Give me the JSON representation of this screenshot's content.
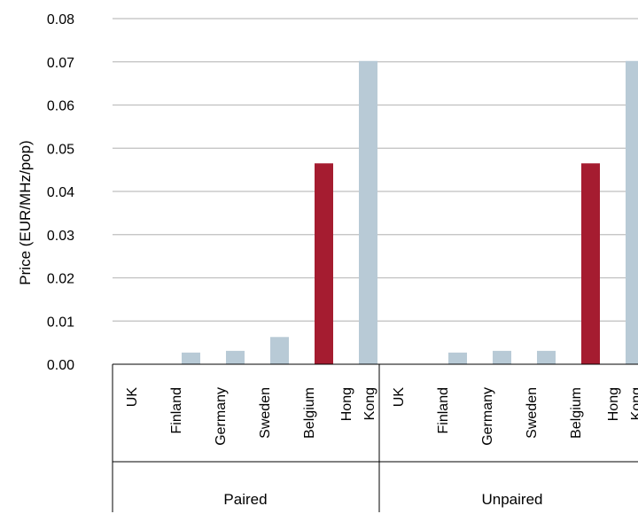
{
  "chart_data": {
    "type": "bar",
    "title": "",
    "ylabel": "Price (EUR/MHz/pop)",
    "xlabel": "",
    "ylim": [
      0,
      0.08
    ],
    "yticks": [
      "0.00",
      "0.01",
      "0.02",
      "0.03",
      "0.04",
      "0.05",
      "0.06",
      "0.07",
      "0.08"
    ],
    "grid": true,
    "legend": "none",
    "groups": [
      {
        "name": "Paired",
        "bars": [
          {
            "category": "UK",
            "label_lines": [
              "UK"
            ],
            "value": 0.0,
            "highlight": false
          },
          {
            "category": "Finland",
            "label_lines": [
              "Finland"
            ],
            "value": 0.0027,
            "highlight": false
          },
          {
            "category": "Germany",
            "label_lines": [
              "Germany"
            ],
            "value": 0.0031,
            "highlight": false
          },
          {
            "category": "Sweden",
            "label_lines": [
              "Sweden"
            ],
            "value": 0.0063,
            "highlight": false
          },
          {
            "category": "Belgium",
            "label_lines": [
              "Belgium"
            ],
            "value": 0.0465,
            "highlight": true
          },
          {
            "category": "Hong Kong",
            "label_lines": [
              "Hong",
              "Kong"
            ],
            "value": 0.0702,
            "highlight": false
          }
        ]
      },
      {
        "name": "Unpaired",
        "bars": [
          {
            "category": "UK",
            "label_lines": [
              "UK"
            ],
            "value": 0.0,
            "highlight": false
          },
          {
            "category": "Finland",
            "label_lines": [
              "Finland"
            ],
            "value": 0.0027,
            "highlight": false
          },
          {
            "category": "Germany",
            "label_lines": [
              "Germany"
            ],
            "value": 0.0031,
            "highlight": false
          },
          {
            "category": "Sweden",
            "label_lines": [
              "Sweden"
            ],
            "value": 0.0031,
            "highlight": false
          },
          {
            "category": "Belgium",
            "label_lines": [
              "Belgium"
            ],
            "value": 0.0465,
            "highlight": true
          },
          {
            "category": "Hong Kong",
            "label_lines": [
              "Hong",
              "Kong"
            ],
            "value": 0.0702,
            "highlight": false
          }
        ]
      }
    ],
    "colors": {
      "bar": "#b8cad6",
      "highlight": "#a51c30",
      "grid": "#bfbfbf",
      "axis": "#000000"
    }
  }
}
